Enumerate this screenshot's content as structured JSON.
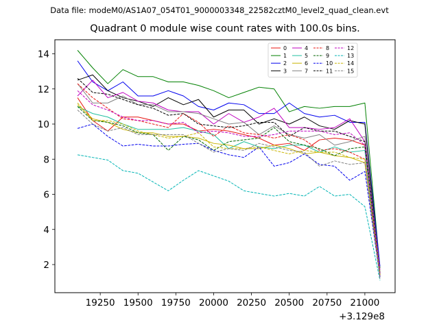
{
  "figure": {
    "suptitle": "Data file: modeM0/AS1A07_054T01_9000003348_22582cztM0_level2_quad_clean.evt"
  },
  "chart_data": {
    "type": "line",
    "title": "Quadrant 0 module wise count rates with 100.0s bins.",
    "xlabel": "",
    "ylabel": "",
    "x_offset_label": "+3.129e8",
    "xlim": [
      18950,
      21200
    ],
    "ylim": [
      0.4,
      14.8
    ],
    "xticks": [
      19250,
      19500,
      19750,
      20000,
      20250,
      20500,
      20750,
      21000
    ],
    "yticks": [
      2,
      4,
      6,
      8,
      10,
      12,
      14
    ],
    "legend_position": "top-right",
    "legend_columns": 4,
    "x": [
      19100,
      19200,
      19300,
      19400,
      19500,
      19600,
      19700,
      19800,
      19900,
      20000,
      20100,
      20200,
      20300,
      20400,
      20500,
      20600,
      20700,
      20800,
      20900,
      21000,
      21100
    ],
    "series": [
      {
        "name": "0",
        "color": "#e8130f",
        "dash": "solid",
        "values": [
          11.5,
          10.2,
          9.6,
          10.4,
          10.4,
          10.2,
          10.0,
          10.0,
          9.6,
          9.7,
          9.6,
          9.4,
          9.2,
          8.8,
          8.9,
          8.5,
          9.1,
          9.2,
          9.1,
          8.8,
          1.3
        ]
      },
      {
        "name": "1",
        "color": "#008000",
        "dash": "solid",
        "values": [
          14.2,
          13.2,
          12.3,
          13.1,
          12.7,
          12.7,
          12.4,
          12.4,
          12.2,
          11.9,
          11.5,
          11.8,
          12.1,
          12.0,
          10.7,
          11.0,
          10.9,
          11.0,
          11.0,
          11.2,
          1.8
        ]
      },
      {
        "name": "2",
        "color": "#0000ee",
        "dash": "solid",
        "values": [
          13.6,
          12.4,
          11.9,
          12.4,
          11.6,
          11.6,
          11.9,
          11.6,
          11.0,
          10.8,
          11.2,
          11.1,
          10.6,
          10.6,
          11.2,
          10.6,
          10.4,
          10.5,
          10.1,
          10.1,
          1.9
        ]
      },
      {
        "name": "3",
        "color": "#000000",
        "dash": "solid",
        "values": [
          12.5,
          12.8,
          11.9,
          11.5,
          11.3,
          11.0,
          11.5,
          11.1,
          11.4,
          10.4,
          10.8,
          10.8,
          10.0,
          10.3,
          10.0,
          10.4,
          9.9,
          9.7,
          10.2,
          10.0,
          1.5
        ]
      },
      {
        "name": "4",
        "color": "#bf00bf",
        "dash": "solid",
        "values": [
          11.6,
          12.5,
          11.5,
          11.8,
          11.3,
          11.2,
          10.8,
          10.7,
          10.7,
          10.0,
          10.6,
          10.1,
          10.4,
          10.9,
          9.8,
          9.8,
          9.7,
          9.8,
          10.3,
          9.0,
          1.7
        ]
      },
      {
        "name": "5",
        "color": "#20c0a0",
        "dash": "solid",
        "values": [
          11.0,
          10.6,
          10.4,
          10.0,
          9.7,
          9.7,
          9.7,
          9.8,
          9.6,
          9.4,
          8.6,
          9.0,
          8.7,
          8.6,
          8.8,
          8.8,
          8.4,
          8.7,
          8.4,
          8.5,
          1.4
        ]
      },
      {
        "name": "6",
        "color": "#c8b400",
        "dash": "solid",
        "values": [
          11.1,
          10.3,
          10.1,
          9.7,
          9.5,
          9.5,
          9.3,
          9.3,
          9.2,
          8.9,
          8.8,
          8.6,
          8.6,
          8.8,
          8.6,
          8.3,
          8.4,
          8.2,
          8.1,
          7.8,
          1.4
        ]
      },
      {
        "name": "7",
        "color": "#808080",
        "dash": "solid",
        "values": [
          12.3,
          11.2,
          11.2,
          11.6,
          11.1,
          11.1,
          10.7,
          10.7,
          10.6,
          10.3,
          10.0,
          10.1,
          9.4,
          9.9,
          9.4,
          9.2,
          9.4,
          8.8,
          9.0,
          9.3,
          1.6
        ]
      },
      {
        "name": "8",
        "color": "#e8130f",
        "dash": "dashed",
        "values": [
          12.3,
          11.5,
          10.9,
          10.3,
          10.2,
          10.0,
          9.8,
          10.6,
          10.1,
          9.3,
          9.9,
          9.5,
          9.4,
          9.2,
          9.4,
          9.1,
          8.5,
          8.6,
          8.4,
          8.0,
          1.4
        ]
      },
      {
        "name": "9",
        "color": "#006400",
        "dash": "dashed",
        "values": [
          11.0,
          10.2,
          10.1,
          9.9,
          9.5,
          9.4,
          8.5,
          9.3,
          9.1,
          8.5,
          9.0,
          9.1,
          9.2,
          9.8,
          9.0,
          8.8,
          8.6,
          8.2,
          8.6,
          8.7,
          1.5
        ]
      },
      {
        "name": "10",
        "color": "#0000ee",
        "dash": "dashed",
        "values": [
          9.75,
          10.0,
          9.3,
          8.75,
          8.85,
          8.75,
          8.75,
          8.85,
          8.9,
          8.5,
          8.25,
          8.1,
          8.7,
          7.6,
          7.8,
          8.3,
          7.7,
          7.6,
          6.8,
          7.3,
          1.3
        ]
      },
      {
        "name": "11",
        "color": "#000000",
        "dash": "dashed",
        "values": [
          12.6,
          11.8,
          11.7,
          11.4,
          11.1,
          10.9,
          10.5,
          10.6,
          10.0,
          9.9,
          9.8,
          9.9,
          10.1,
          10.1,
          9.3,
          9.8,
          9.6,
          9.6,
          9.3,
          9.0,
          1.4
        ]
      },
      {
        "name": "12",
        "color": "#bf00bf",
        "dash": "dashed",
        "values": [
          11.9,
          11.1,
          10.8,
          10.4,
          10.2,
          10.2,
          10.0,
          10.1,
          9.5,
          9.6,
          9.5,
          9.3,
          9.3,
          9.4,
          9.6,
          9.6,
          9.6,
          9.4,
          9.5,
          8.8,
          1.5
        ]
      },
      {
        "name": "13",
        "color": "#00b4b4",
        "dash": "dashed",
        "values": [
          8.25,
          8.1,
          7.95,
          7.35,
          7.2,
          6.7,
          6.2,
          6.8,
          7.35,
          7.05,
          6.75,
          6.2,
          6.05,
          5.9,
          6.05,
          5.9,
          6.45,
          5.9,
          6.0,
          5.3,
          1.1
        ]
      },
      {
        "name": "14",
        "color": "#c8b400",
        "dash": "dashed",
        "values": [
          11.2,
          10.2,
          10.2,
          10.0,
          9.6,
          9.4,
          9.2,
          9.3,
          9.5,
          8.7,
          8.6,
          8.6,
          8.7,
          8.5,
          8.3,
          8.5,
          8.4,
          8.4,
          8.1,
          8.0,
          1.4
        ]
      },
      {
        "name": "15",
        "color": "#808080",
        "dash": "dashed",
        "values": [
          10.8,
          10.0,
          9.6,
          9.8,
          9.4,
          9.4,
          9.4,
          9.4,
          8.9,
          8.4,
          8.6,
          8.5,
          8.9,
          8.7,
          8.5,
          8.4,
          7.6,
          7.9,
          7.7,
          7.8,
          1.2
        ]
      }
    ]
  }
}
